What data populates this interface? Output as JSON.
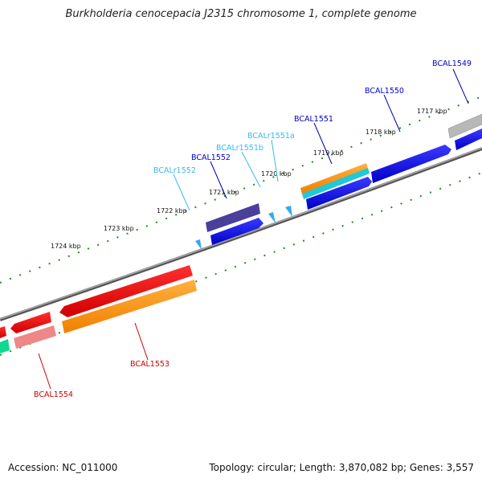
{
  "title": "Burkholderia cenocepacia J2315 chromosome 1, complete genome",
  "footer": {
    "accession": "Accession: NC_011000",
    "stats": "Topology: circular; Length: 3,870,082 bp; Genes: 3,557"
  },
  "ticks": [
    "1717 kbp",
    "1718 kbp",
    "1719 kbp",
    "1720 kbp",
    "1721 kbp",
    "1722 kbp",
    "1723 kbp",
    "1724 kbp"
  ],
  "genes": {
    "BCAL1549": "BCAL1549",
    "BCAL1550": "BCAL1550",
    "BCAL1551": "BCAL1551",
    "BCALr1551a": "BCALr1551a",
    "BCALr1551b": "BCALr1551b",
    "BCAL1552": "BCAL1552",
    "BCALr1552": "BCALr1552",
    "BCAL1553": "BCAL1553",
    "BCAL1554": "BCAL1554"
  },
  "colors": {
    "dark_blue": "#0000cc",
    "light_blue": "#33bbee",
    "red": "#cc0000",
    "green_ticks": "#228b22"
  }
}
